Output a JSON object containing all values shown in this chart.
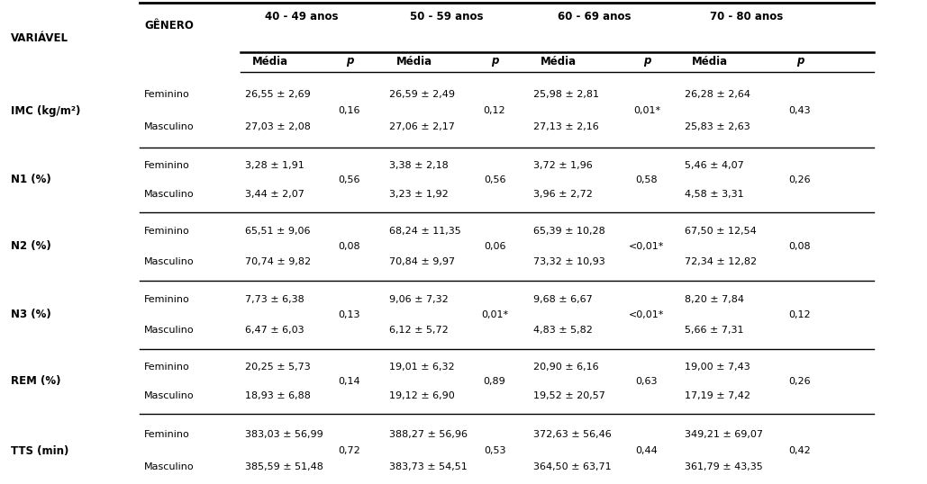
{
  "genero_label": "GÊNERO",
  "variavel_label": "VARIÁVEL",
  "col_headers_top": [
    "40 - 49 anos",
    "50 - 59 anos",
    "60 - 69 anos",
    "70 - 80 anos"
  ],
  "rows": [
    {
      "var": "IMC (kg/m²)",
      "fem_40": "26,55 ± 2,69",
      "p_40": "0,16",
      "fem_50": "26,59 ± 2,49",
      "p_50": "0,12",
      "fem_60": "25,98 ± 2,81",
      "p_60": "0,01*",
      "fem_70": "26,28 ± 2,64",
      "p_70": "0,43",
      "mas_40": "27,03 ± 2,08",
      "mas_50": "27,06 ± 2,17",
      "mas_60": "27,13 ± 2,16",
      "mas_70": "25,83 ± 2,63"
    },
    {
      "var": "N1 (%)",
      "fem_40": "3,28 ± 1,91",
      "p_40": "0,56",
      "fem_50": "3,38 ± 2,18",
      "p_50": "0,56",
      "fem_60": "3,72 ± 1,96",
      "p_60": "0,58",
      "fem_70": "5,46 ± 4,07",
      "p_70": "0,26",
      "mas_40": "3,44 ± 2,07",
      "mas_50": "3,23 ± 1,92",
      "mas_60": "3,96 ± 2,72",
      "mas_70": "4,58 ± 3,31"
    },
    {
      "var": "N2 (%)",
      "fem_40": "65,51 ± 9,06",
      "p_40": "0,08",
      "fem_50": "68,24 ± 11,35",
      "p_50": "0,06",
      "fem_60": "65,39 ± 10,28",
      "p_60": "<0,01*",
      "fem_70": "67,50 ± 12,54",
      "p_70": "0,08",
      "mas_40": "70,74 ± 9,82",
      "mas_50": "70,84 ± 9,97",
      "mas_60": "73,32 ± 10,93",
      "mas_70": "72,34 ± 12,82"
    },
    {
      "var": "N3 (%)",
      "fem_40": "7,73 ± 6,38",
      "p_40": "0,13",
      "fem_50": "9,06 ± 7,32",
      "p_50": "0,01*",
      "fem_60": "9,68 ± 6,67",
      "p_60": "<0,01*",
      "fem_70": "8,20 ± 7,84",
      "p_70": "0,12",
      "mas_40": "6,47 ± 6,03",
      "mas_50": "6,12 ± 5,72",
      "mas_60": "4,83 ± 5,82",
      "mas_70": "5,66 ± 7,31"
    },
    {
      "var": "REM (%)",
      "fem_40": "20,25 ± 5,73",
      "p_40": "0,14",
      "fem_50": "19,01 ± 6,32",
      "p_50": "0,89",
      "fem_60": "20,90 ± 6,16",
      "p_60": "0,63",
      "fem_70": "19,00 ± 7,43",
      "p_70": "0,26",
      "mas_40": "18,93 ± 6,88",
      "mas_50": "19,12 ± 6,90",
      "mas_60": "19,52 ± 20,57",
      "mas_70": "17,19 ± 7,42"
    },
    {
      "var": "TTS (min)",
      "fem_40": "383,03 ± 56,99",
      "p_40": "0,72",
      "fem_50": "388,27 ± 56,96",
      "p_50": "0,53",
      "fem_60": "372,63 ± 56,46",
      "p_60": "0,44",
      "fem_70": "349,21 ± 69,07",
      "p_70": "0,42",
      "mas_40": "385,59 ± 51,48",
      "mas_50": "383,73 ± 54,51",
      "mas_60": "364,50 ± 63,71",
      "mas_70": "361,79 ± 43,35"
    }
  ],
  "bg_color": "#ffffff",
  "text_color": "#000000"
}
